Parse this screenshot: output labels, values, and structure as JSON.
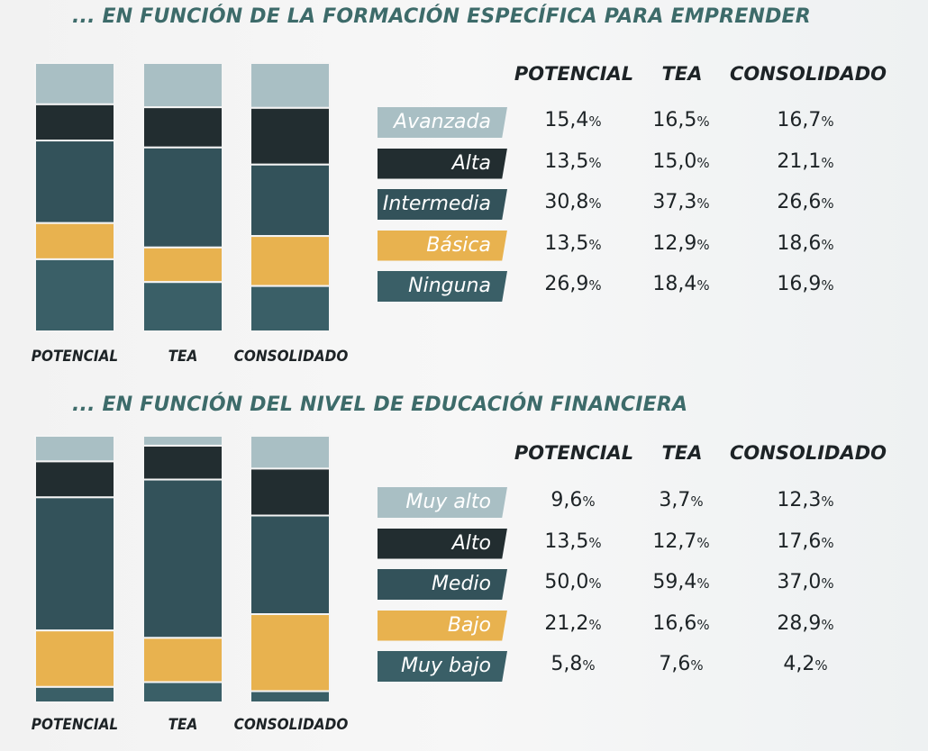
{
  "colors": {
    "light": "#a9bfc4",
    "dark": "#222d30",
    "mid": "#33525a",
    "gold": "#e8b24f",
    "teal": "#3a5f67",
    "title": "#3d6b6a"
  },
  "chart_data": [
    {
      "type": "bar",
      "stacked": true,
      "normalized_percent": true,
      "title": "... EN FUNCIÓN DE LA FORMACIÓN ESPECÍFICA PARA EMPRENDER",
      "categories": [
        "POTENCIAL",
        "TEA",
        "CONSOLIDADO"
      ],
      "series": [
        {
          "name": "Avanzada",
          "color": "light",
          "values": [
            "15,4",
            "16,5",
            "16,7"
          ]
        },
        {
          "name": "Alta",
          "color": "dark",
          "values": [
            "13,5",
            "15,0",
            "21,1"
          ]
        },
        {
          "name": "Intermedia",
          "color": "mid",
          "values": [
            "30,8",
            "37,3",
            "26,6"
          ]
        },
        {
          "name": "Básica",
          "color": "gold",
          "values": [
            "13,5",
            "12,9",
            "18,6"
          ]
        },
        {
          "name": "Ninguna",
          "color": "teal",
          "values": [
            "26,9",
            "18,4",
            "16,9"
          ]
        }
      ],
      "unit": "%",
      "legend_position": "right",
      "grid": false
    },
    {
      "type": "bar",
      "stacked": true,
      "normalized_percent": true,
      "title": "... EN FUNCIÓN DEL NIVEL DE EDUCACIÓN FINANCIERA",
      "categories": [
        "POTENCIAL",
        "TEA",
        "CONSOLIDADO"
      ],
      "series": [
        {
          "name": "Muy alto",
          "color": "light",
          "values": [
            "9,6",
            "3,7",
            "12,3"
          ]
        },
        {
          "name": "Alto",
          "color": "dark",
          "values": [
            "13,5",
            "12,7",
            "17,6"
          ]
        },
        {
          "name": "Medio",
          "color": "mid",
          "values": [
            "50,0",
            "59,4",
            "37,0"
          ]
        },
        {
          "name": "Bajo",
          "color": "gold",
          "values": [
            "21,2",
            "16,6",
            "28,9"
          ]
        },
        {
          "name": "Muy bajo",
          "color": "teal",
          "values": [
            "5,8",
            "7,6",
            "4,2"
          ]
        }
      ],
      "unit": "%",
      "legend_position": "right",
      "grid": false
    }
  ]
}
